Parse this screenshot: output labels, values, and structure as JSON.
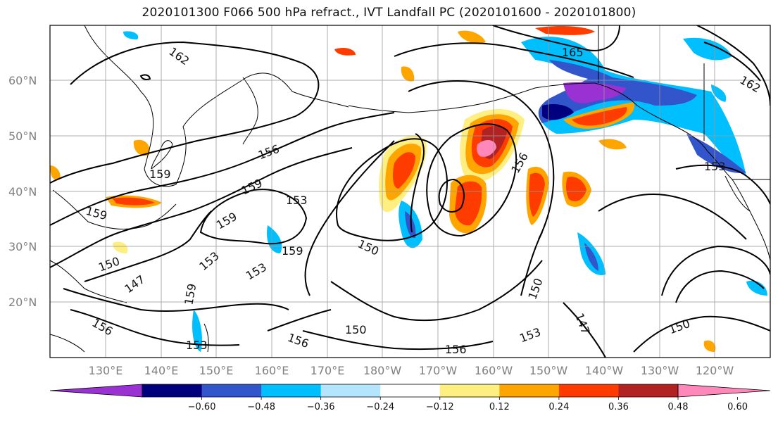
{
  "title": "2020101300 F066 500 hPa refract., IVT Landfall PC (2020101600 - 2020101800)",
  "lat_labels": [
    "60°N",
    "50°N",
    "40°N",
    "30°N",
    "20°N"
  ],
  "lon_labels": [
    "130°E",
    "140°E",
    "150°E",
    "160°E",
    "170°E",
    "180°W",
    "170°W",
    "160°W",
    "150°W",
    "140°W",
    "130°W",
    "120°W"
  ],
  "contour_labels": [
    "165",
    "162",
    "162",
    "156",
    "159",
    "159",
    "159",
    "153",
    "159",
    "159",
    "150",
    "153",
    "153",
    "147",
    "159",
    "156",
    "150",
    "153",
    "150",
    "156",
    "147",
    "153",
    "150",
    "156",
    "156",
    "150",
    "153"
  ],
  "colorbar": {
    "ticks": [
      "−0.60",
      "−0.48",
      "−0.36",
      "−0.24",
      "−0.12",
      "0.12",
      "0.24",
      "0.36",
      "0.48",
      "0.60"
    ],
    "colors": [
      "#9a31d2",
      "#00007f",
      "#3355cc",
      "#00bfff",
      "#b3e5ff",
      "#ffffff",
      "#ffee80",
      "#ffa500",
      "#ff3c00",
      "#b22222",
      "#ff88bb"
    ]
  }
}
